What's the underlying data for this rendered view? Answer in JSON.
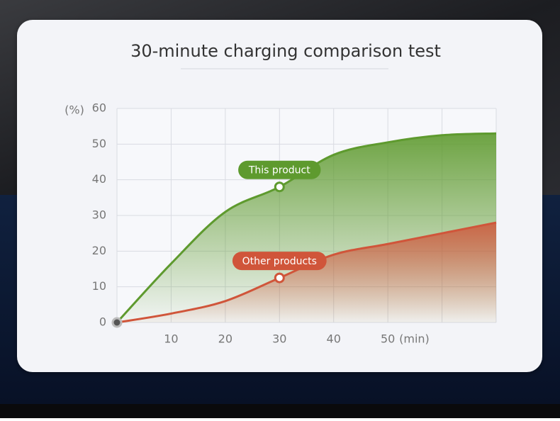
{
  "chart_data": {
    "type": "area",
    "title": "30-minute charging comparison test",
    "y_unit": "(%)",
    "x_unit": "(min)",
    "x": [
      0,
      10,
      20,
      30,
      40,
      50,
      60,
      70
    ],
    "series": [
      {
        "name": "This product",
        "color": "#5e9a2e",
        "values": [
          0,
          16.5,
          31,
          38,
          47,
          50.5,
          52.5,
          53
        ]
      },
      {
        "name": "Other products",
        "color": "#d0553a",
        "values": [
          0,
          2.5,
          6,
          12.5,
          19,
          22,
          25,
          28
        ]
      }
    ],
    "xlim": [
      0,
      70
    ],
    "ylim": [
      0,
      60
    ],
    "xticks": [
      10,
      20,
      30,
      40,
      50
    ],
    "yticks": [
      0,
      10,
      20,
      30,
      40,
      50,
      60
    ],
    "grid": true
  }
}
